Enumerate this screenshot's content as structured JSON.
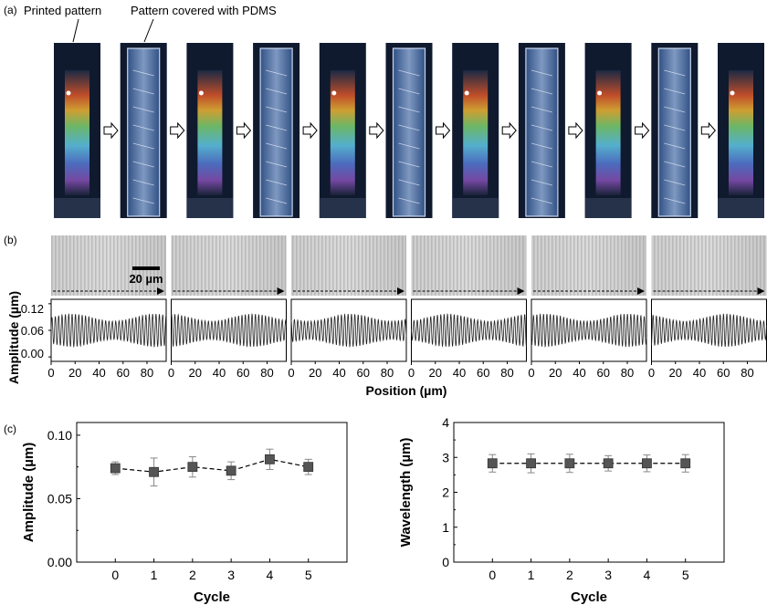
{
  "panel_a": {
    "label": "(a)",
    "annotation_printed": "Printed pattern",
    "annotation_pdms": "Pattern covered with PDMS",
    "sequence": [
      "printed",
      "pdms",
      "printed",
      "pdms",
      "printed",
      "pdms",
      "printed",
      "pdms",
      "printed",
      "pdms",
      "printed"
    ]
  },
  "panel_b": {
    "label": "(b)",
    "scale_bar_label": "20 µm",
    "ylabel": "Amplitude (µm)",
    "xlabel": "Position (µm)",
    "yticks": [
      "0.12",
      "0.06",
      "0.00"
    ],
    "xticks": [
      "0",
      "20",
      "40",
      "60",
      "80"
    ]
  },
  "panel_c": {
    "label": "(c)"
  },
  "chart_data": [
    {
      "type": "line",
      "panel": "b",
      "count": 6,
      "x_range": [
        0,
        96
      ],
      "ylim": [
        -0.01,
        0.13
      ],
      "approx_wavelength": 2.8,
      "approx_amplitude": 0.074,
      "baseline": 0.06
    },
    {
      "type": "scatter",
      "panel": "c-left",
      "xlabel": "Cycle",
      "ylabel": "Amplitude (µm)",
      "x": [
        0,
        1,
        2,
        3,
        4,
        5
      ],
      "y": [
        0.074,
        0.071,
        0.075,
        0.072,
        0.081,
        0.075
      ],
      "err": [
        0.005,
        0.011,
        0.008,
        0.007,
        0.008,
        0.006
      ],
      "xlim": [
        -1,
        6
      ],
      "ylim": [
        0.0,
        0.11
      ],
      "yticks": [
        "0.00",
        "0.05",
        "0.10"
      ],
      "xticks": [
        "0",
        "1",
        "2",
        "3",
        "4",
        "5"
      ]
    },
    {
      "type": "scatter",
      "panel": "c-right",
      "xlabel": "Cycle",
      "ylabel": "Wavelength (µm)",
      "x": [
        0,
        1,
        2,
        3,
        4,
        5
      ],
      "y": [
        2.83,
        2.83,
        2.83,
        2.83,
        2.83,
        2.83
      ],
      "err": [
        0.25,
        0.27,
        0.26,
        0.22,
        0.24,
        0.25
      ],
      "xlim": [
        -1,
        6
      ],
      "ylim": [
        0,
        4
      ],
      "yticks": [
        "0",
        "1",
        "2",
        "3",
        "4"
      ],
      "xticks": [
        "0",
        "1",
        "2",
        "3",
        "4",
        "5"
      ]
    }
  ]
}
